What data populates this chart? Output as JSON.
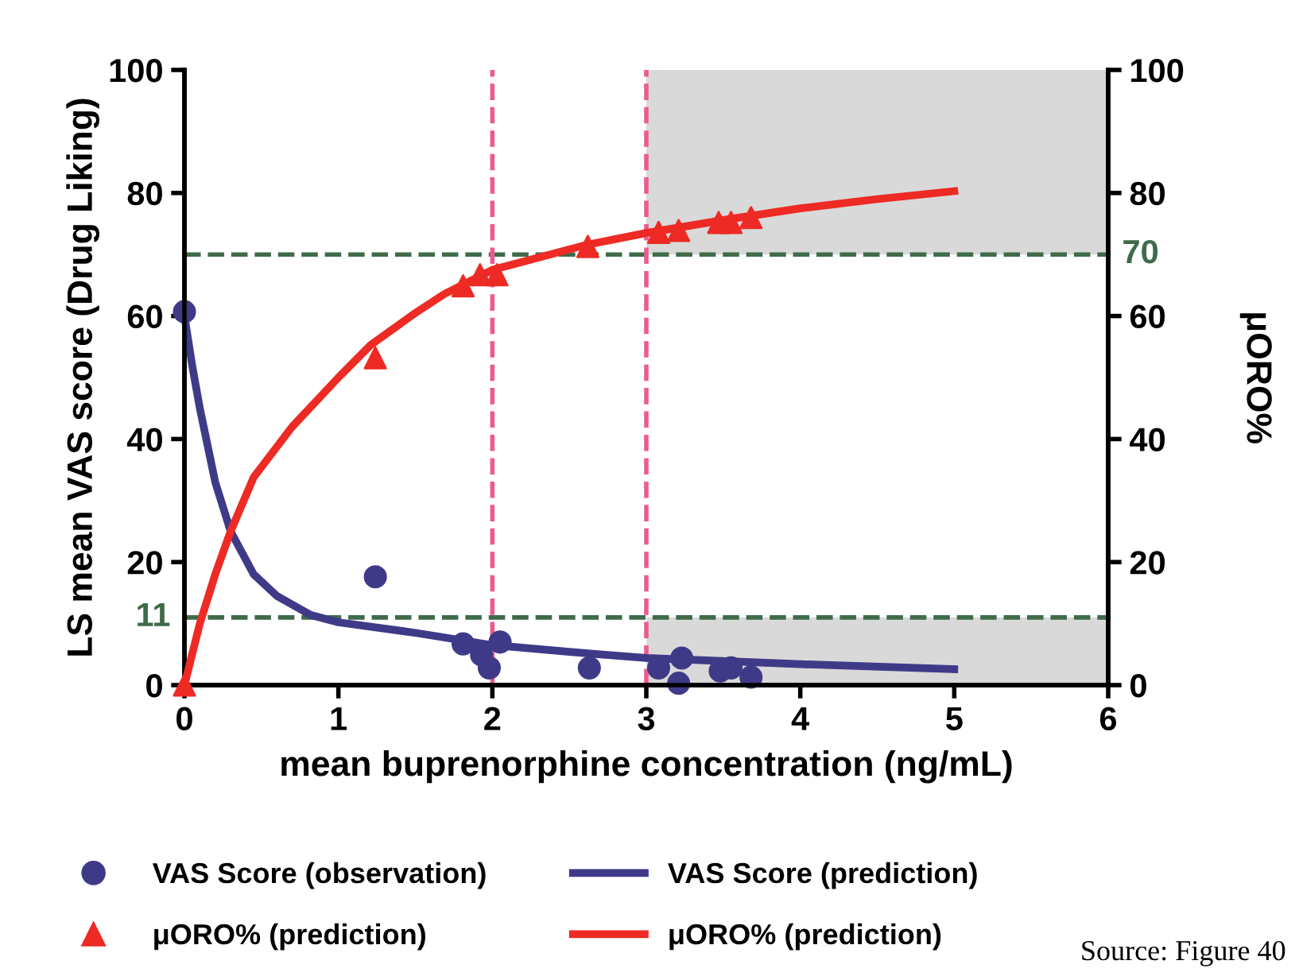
{
  "chart_data": {
    "type": "scatter",
    "xlabel": "mean buprenorphine concentration (ng/mL)",
    "ylabel": "LS mean VAS score (Drug Liking)",
    "y2label": "μORO%",
    "xlim": [
      0,
      6
    ],
    "xticks": [
      0,
      1,
      2,
      3,
      4,
      5,
      6
    ],
    "ylim": [
      0,
      100
    ],
    "yticks": [
      0,
      20,
      40,
      60,
      80,
      100
    ],
    "y2lim": [
      0,
      100
    ],
    "y2ticks": [
      0,
      20,
      40,
      60,
      80,
      100
    ],
    "grid": false,
    "legend": "bottom",
    "series": [
      {
        "name": "VAS Score (observation)",
        "type": "scatter",
        "marker": "circle",
        "color": "#3f3a88",
        "x": [
          0,
          1.24,
          1.81,
          1.93,
          1.98,
          2.05,
          2.63,
          3.08,
          3.21,
          3.23,
          3.48,
          3.55,
          3.68
        ],
        "values": [
          60.7,
          17.6,
          6.7,
          4.9,
          2.8,
          7.0,
          2.8,
          2.8,
          0.3,
          4.4,
          2.3,
          2.8,
          1.3
        ]
      },
      {
        "name": "μORO% (prediction)",
        "type": "scatter",
        "marker": "triangle",
        "axis": "y2",
        "color": "#ee2a24",
        "x": [
          0,
          1.24,
          1.81,
          1.92,
          2.03,
          2.62,
          3.08,
          3.21,
          3.47,
          3.55,
          3.68
        ],
        "values": [
          0,
          53.2,
          64.9,
          66.7,
          66.7,
          71.3,
          73.6,
          73.9,
          75.2,
          75.2,
          76.0
        ]
      },
      {
        "name": "VAS Score (prediction)",
        "type": "line",
        "marker": "none",
        "color": "#3f3a88",
        "x": [
          0,
          0.05,
          0.1,
          0.2,
          0.3,
          0.45,
          0.6,
          0.82,
          1.0,
          1.5,
          2.0,
          2.5,
          3.0,
          4.0,
          5.0
        ],
        "values": [
          60,
          52,
          45,
          33,
          25,
          18,
          14.5,
          11.4,
          10.2,
          8.5,
          6.5,
          5.4,
          4.4,
          3.4,
          2.6
        ]
      },
      {
        "name": "μORO% (prediction)",
        "type": "line",
        "marker": "none",
        "axis": "y2",
        "color": "#ee2a24",
        "x": [
          0,
          0.1,
          0.2,
          0.3,
          0.45,
          0.7,
          1.0,
          1.21,
          1.5,
          1.69,
          2.0,
          2.6,
          3.0,
          3.5,
          4.0,
          4.5,
          5.0
        ],
        "values": [
          0,
          10,
          18,
          25,
          33.8,
          42,
          50,
          55.3,
          60.5,
          63.6,
          67.5,
          71.5,
          73.5,
          75.6,
          77.5,
          79,
          80.3
        ]
      }
    ],
    "ref_lines": [
      {
        "axis": "y",
        "value": 70,
        "label": "70",
        "color": "#3f6b4a",
        "line_style": "dashed"
      },
      {
        "axis": "y",
        "value": 11,
        "label": "11",
        "color": "#3f6b4a",
        "line_style": "dashed"
      },
      {
        "axis": "x",
        "value": 2,
        "color": "#ee5a8f",
        "line_style": "dashed"
      },
      {
        "axis": "x",
        "value": 3,
        "color": "#ee5a8f",
        "line_style": "dashed"
      }
    ],
    "bands": [
      {
        "axis": "x",
        "from": 3,
        "to": 6,
        "color": "#d9d9d9"
      },
      {
        "axis": "y",
        "from": 11,
        "to": 70,
        "color": "#ffffff"
      }
    ],
    "annotations": [
      "Source: Figure 40"
    ]
  }
}
